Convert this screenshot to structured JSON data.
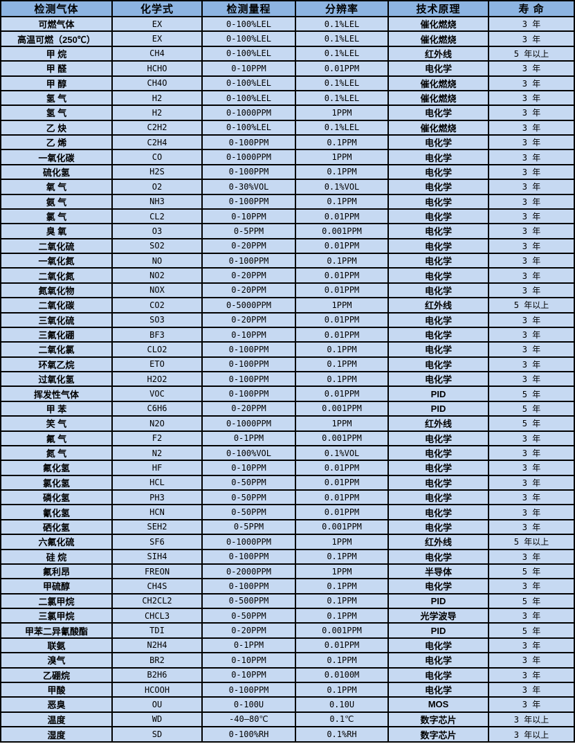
{
  "colors": {
    "header_bg": "#8db4e2",
    "row_bg": "#c6d9f2",
    "grid": "#000000",
    "text": "#000000"
  },
  "table": {
    "columns": [
      "检测气体",
      "化学式",
      "检测量程",
      "分辨率",
      "技术原理",
      "寿 命"
    ],
    "rows": [
      [
        "可燃气体",
        "EX",
        "0-100%LEL",
        "0.1%LEL",
        "催化燃烧",
        "3 年"
      ],
      [
        "高温可燃（250℃）",
        "EX",
        "0-100%LEL",
        "0.1%LEL",
        "催化燃烧",
        "3 年"
      ],
      [
        "甲 烷",
        "CH4",
        "0-100%LEL",
        "0.1%LEL",
        "红外线",
        "5 年以上"
      ],
      [
        "甲 醛",
        "HCHO",
        "0-10PPM",
        "0.01PPM",
        "电化学",
        "3 年"
      ],
      [
        "甲 醇",
        "CH4O",
        "0-100%LEL",
        "0.1%LEL",
        "催化燃烧",
        "3 年"
      ],
      [
        "氢 气",
        "H2",
        "0-100%LEL",
        "0.1%LEL",
        "催化燃烧",
        "3 年"
      ],
      [
        "氢 气",
        "H2",
        "0-1000PPM",
        "1PPM",
        "电化学",
        "3 年"
      ],
      [
        "乙 炔",
        "C2H2",
        "0-100%LEL",
        "0.1%LEL",
        "催化燃烧",
        "3 年"
      ],
      [
        "乙 烯",
        "C2H4",
        "0-100PPM",
        "0.1PPM",
        "电化学",
        "3 年"
      ],
      [
        "一氧化碳",
        "CO",
        "0-1000PPM",
        "1PPM",
        "电化学",
        "3 年"
      ],
      [
        "硫化氢",
        "H2S",
        "0-100PPM",
        "0.1PPM",
        "电化学",
        "3 年"
      ],
      [
        "氧 气",
        "O2",
        "0-30%VOL",
        "0.1%VOL",
        "电化学",
        "3 年"
      ],
      [
        "氨 气",
        "NH3",
        "0-100PPM",
        "0.1PPM",
        "电化学",
        "3 年"
      ],
      [
        "氯 气",
        "CL2",
        "0-10PPM",
        "0.01PPM",
        "电化学",
        "3 年"
      ],
      [
        "臭 氧",
        "O3",
        "0-5PPM",
        "0.001PPM",
        "电化学",
        "3 年"
      ],
      [
        "二氧化硫",
        "SO2",
        "0-20PPM",
        "0.01PPM",
        "电化学",
        "3 年"
      ],
      [
        "一氧化氮",
        "NO",
        "0-100PPM",
        "0.1PPM",
        "电化学",
        "3 年"
      ],
      [
        "二氧化氮",
        "NO2",
        "0-20PPM",
        "0.01PPM",
        "电化学",
        "3 年"
      ],
      [
        "氮氧化物",
        "NOX",
        "0-20PPM",
        "0.01PPM",
        "电化学",
        "3 年"
      ],
      [
        "二氧化碳",
        "CO2",
        "0-5000PPM",
        "1PPM",
        "红外线",
        "5 年以上"
      ],
      [
        "三氧化硫",
        "SO3",
        "0-20PPM",
        "0.01PPM",
        "电化学",
        "3 年"
      ],
      [
        "三氟化硼",
        "BF3",
        "0-10PPM",
        "0.01PPM",
        "电化学",
        "3 年"
      ],
      [
        "二氧化氯",
        "CLO2",
        "0-100PPM",
        "0.1PPM",
        "电化学",
        "3 年"
      ],
      [
        "环氧乙烷",
        "ETO",
        "0-100PPM",
        "0.1PPM",
        "电化学",
        "3 年"
      ],
      [
        "过氧化氢",
        "H2O2",
        "0-100PPM",
        "0.1PPM",
        "电化学",
        "3 年"
      ],
      [
        "挥发性气体",
        "VOC",
        "0-100PPM",
        "0.01PPM",
        "PID",
        "5 年"
      ],
      [
        "甲 苯",
        "C6H6",
        "0-20PPM",
        "0.001PPM",
        "PID",
        "5 年"
      ],
      [
        "笑 气",
        "N2O",
        "0-1000PPM",
        "1PPM",
        "红外线",
        "5 年"
      ],
      [
        "氟 气",
        "F2",
        "0-1PPM",
        "0.001PPM",
        "电化学",
        "3 年"
      ],
      [
        "氮 气",
        "N2",
        "0-100%VOL",
        "0.1%VOL",
        "电化学",
        "3 年"
      ],
      [
        "氟化氢",
        "HF",
        "0-10PPM",
        "0.01PPM",
        "电化学",
        "3 年"
      ],
      [
        "氯化氢",
        "HCL",
        "0-50PPM",
        "0.01PPM",
        "电化学",
        "3 年"
      ],
      [
        "磷化氢",
        "PH3",
        "0-50PPM",
        "0.01PPM",
        "电化学",
        "3 年"
      ],
      [
        "氰化氢",
        "HCN",
        "0-50PPM",
        "0.01PPM",
        "电化学",
        "3 年"
      ],
      [
        "硒化氢",
        "SEH2",
        "0-5PPM",
        "0.001PPM",
        "电化学",
        "3 年"
      ],
      [
        "六氟化硫",
        "SF6",
        "0-1000PPM",
        "1PPM",
        "红外线",
        "5 年以上"
      ],
      [
        "硅 烷",
        "SIH4",
        "0-100PPM",
        "0.1PPM",
        "电化学",
        "3 年"
      ],
      [
        "氟利昂",
        "FREON",
        "0-2000PPM",
        "1PPM",
        "半导体",
        "5 年"
      ],
      [
        "甲硫醇",
        "CH4S",
        "0-100PPM",
        "0.1PPM",
        "电化学",
        "3 年"
      ],
      [
        "二氯甲烷",
        "CH2CL2",
        "0-500PPM",
        "0.1PPM",
        "PID",
        "5 年"
      ],
      [
        "三氯甲烷",
        "CHCL3",
        "0-50PPM",
        "0.1PPM",
        "光学波导",
        "3 年"
      ],
      [
        "甲苯二异氰酸酯",
        "TDI",
        "0-20PPM",
        "0.001PPM",
        "PID",
        "5 年"
      ],
      [
        "联氨",
        "N2H4",
        "0-1PPM",
        "0.01PPM",
        "电化学",
        "3 年"
      ],
      [
        "溴气",
        "BR2",
        "0-10PPM",
        "0.1PPM",
        "电化学",
        "3 年"
      ],
      [
        "乙硼烷",
        "B2H6",
        "0-10PPM",
        "0.0100M",
        "电化学",
        "3 年"
      ],
      [
        "甲酸",
        "HCOOH",
        "0-100PPM",
        "0.1PPM",
        "电化学",
        "3 年"
      ],
      [
        "恶臭",
        "OU",
        "0-100U",
        "0.10U",
        "MOS",
        "3 年"
      ],
      [
        "温度",
        "WD",
        "-40—80℃",
        "0.1℃",
        "数字芯片",
        "3 年以上"
      ],
      [
        "湿度",
        "SD",
        "0-100%RH",
        "0.1%RH",
        "数字芯片",
        "3 年以上"
      ]
    ]
  }
}
